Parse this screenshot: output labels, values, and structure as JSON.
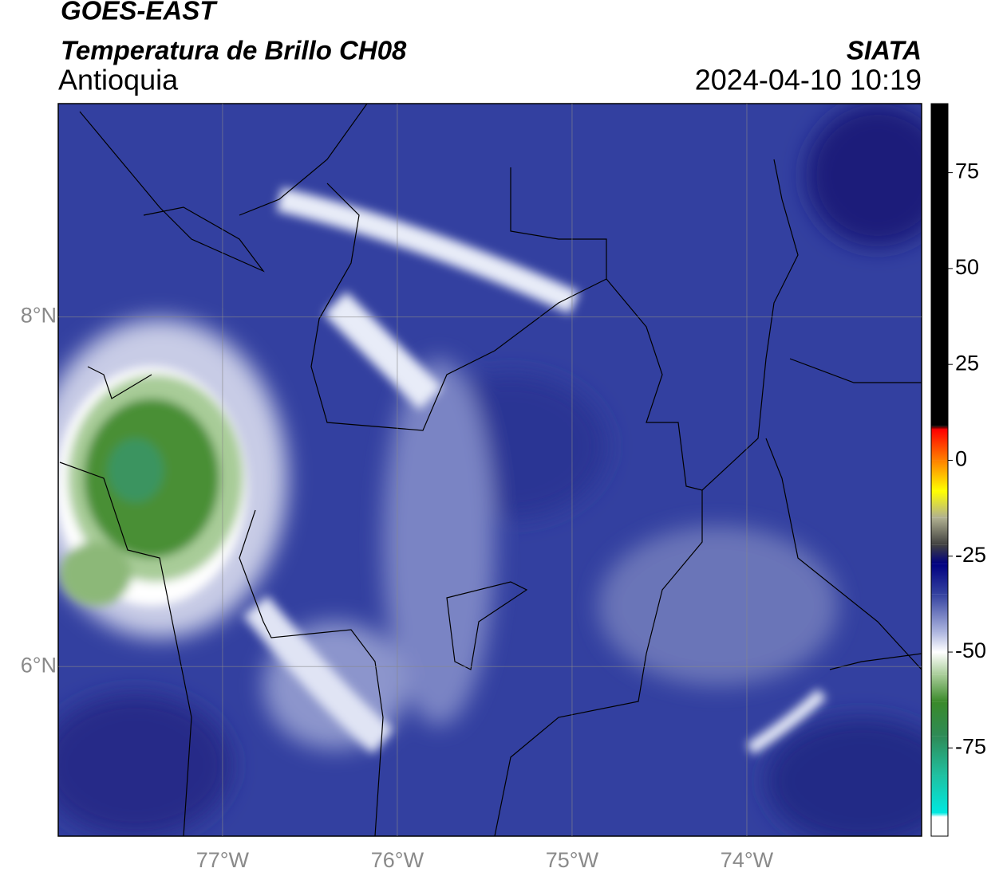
{
  "header": {
    "title": "GOES-EAST",
    "subtitle": "Temperatura de Brillo CH08",
    "region": "Antioquia",
    "source": "SIATA",
    "datetime": "2024-04-10 10:19"
  },
  "map": {
    "xlim": [
      -77.94,
      -73.0
    ],
    "ylim": [
      5.03,
      9.22
    ],
    "xticks": [
      {
        "value": -77,
        "label": "77°W"
      },
      {
        "value": -76,
        "label": "76°W"
      },
      {
        "value": -75,
        "label": "75°W"
      },
      {
        "value": -74,
        "label": "74°W"
      }
    ],
    "yticks": [
      {
        "value": 8,
        "label": "8°N"
      },
      {
        "value": 6,
        "label": "6°N"
      }
    ],
    "grid": true
  },
  "colorbar": {
    "lim": [
      -98,
      93
    ],
    "ticks": [
      75,
      50,
      25,
      0,
      -25,
      -50,
      -75
    ],
    "stops": [
      {
        "value": 93,
        "color": "#000000"
      },
      {
        "value": 9,
        "color": "#000000"
      },
      {
        "value": 8,
        "color": "#ff0000"
      },
      {
        "value": 0,
        "color": "#ff8000"
      },
      {
        "value": -8,
        "color": "#ffff00"
      },
      {
        "value": -15,
        "color": "#b0b090"
      },
      {
        "value": -22,
        "color": "#404040"
      },
      {
        "value": -27,
        "color": "#000080"
      },
      {
        "value": -35,
        "color": "#3442a0"
      },
      {
        "value": -45,
        "color": "#b0b8e0"
      },
      {
        "value": -50,
        "color": "#ffffff"
      },
      {
        "value": -56,
        "color": "#a8cc98"
      },
      {
        "value": -63,
        "color": "#3a8a2a"
      },
      {
        "value": -72,
        "color": "#2e8b57"
      },
      {
        "value": -82,
        "color": "#20c0a0"
      },
      {
        "value": -92,
        "color": "#00e8e0"
      },
      {
        "value": -93,
        "color": "#ffffff"
      },
      {
        "value": -98,
        "color": "#ffffff"
      }
    ]
  }
}
